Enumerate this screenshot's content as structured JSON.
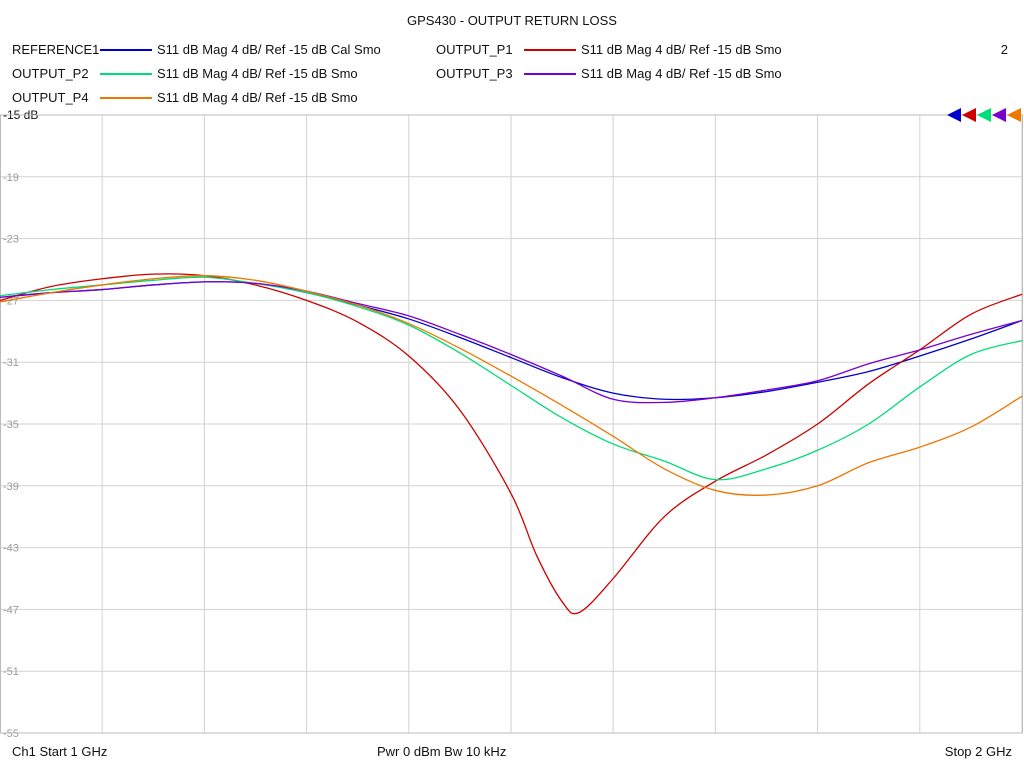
{
  "header": {
    "title": "GPS430 - OUTPUT RETURN LOSS",
    "channel_number": "2"
  },
  "legend": [
    {
      "name": "REFERENCE1",
      "desc": "S11  dB Mag  4 dB/ Ref -15 dB  Cal Smo",
      "color": "#0000cc"
    },
    {
      "name": "OUTPUT_P1",
      "desc": "S11  dB Mag  4 dB/ Ref -15 dB  Smo",
      "color": "#cc0000"
    },
    {
      "name": "OUTPUT_P2",
      "desc": "S11  dB Mag  4 dB/ Ref -15 dB  Smo",
      "color": "#00dd77"
    },
    {
      "name": "OUTPUT_P3",
      "desc": "S11  dB Mag  4 dB/ Ref -15 dB  Smo",
      "color": "#7700cc"
    },
    {
      "name": "OUTPUT_P4",
      "desc": "S11  dB Mag  4 dB/ Ref -15 dB  Smo",
      "color": "#ee7700"
    }
  ],
  "footer": {
    "start": "Ch1  Start  1 GHz",
    "center": "Pwr  0 dBm  Bw  10 kHz",
    "stop": "Stop  2 GHz"
  },
  "chart_data": {
    "type": "line",
    "title": "GPS430 - OUTPUT RETURN LOSS",
    "xlim": [
      1.0,
      2.0
    ],
    "x_unit": "GHz",
    "ylim": [
      -55,
      -15
    ],
    "y_ticks": [
      -15,
      -19,
      -23,
      -27,
      -31,
      -35,
      -39,
      -43,
      -47,
      -51,
      -55
    ],
    "y_tick_labels": [
      "-15 dB",
      "-19",
      "-23",
      "-27",
      "-31",
      "-35",
      "-39",
      "-43",
      "-47",
      "-51",
      "-55"
    ],
    "x_divisions": 10,
    "grid": true,
    "reference_level": -15,
    "series": [
      {
        "name": "REFERENCE1",
        "color": "#0000cc",
        "x": [
          1.0,
          1.05,
          1.1,
          1.15,
          1.2,
          1.25,
          1.3,
          1.35,
          1.4,
          1.45,
          1.5,
          1.55,
          1.6,
          1.65,
          1.7,
          1.75,
          1.8,
          1.85,
          1.9,
          1.95,
          2.0
        ],
        "y": [
          -26.8,
          -26.5,
          -26.3,
          -26.0,
          -25.8,
          -25.9,
          -26.5,
          -27.3,
          -28.2,
          -29.4,
          -30.7,
          -32.0,
          -33.0,
          -33.4,
          -33.3,
          -32.9,
          -32.3,
          -31.6,
          -30.6,
          -29.5,
          -28.3
        ]
      },
      {
        "name": "OUTPUT_P1",
        "color": "#cc0000",
        "x": [
          1.0,
          1.05,
          1.1,
          1.15,
          1.2,
          1.25,
          1.3,
          1.35,
          1.4,
          1.45,
          1.5,
          1.525,
          1.55,
          1.5667,
          1.6,
          1.65,
          1.7,
          1.75,
          1.8,
          1.85,
          1.9,
          1.95,
          2.0
        ],
        "y": [
          -27.0,
          -26.1,
          -25.6,
          -25.3,
          -25.4,
          -26.0,
          -27.0,
          -28.4,
          -30.6,
          -34.1,
          -39.5,
          -43.5,
          -46.5,
          -47.2,
          -45.0,
          -41.0,
          -38.7,
          -37.0,
          -35.0,
          -32.4,
          -30.2,
          -27.9,
          -26.6
        ]
      },
      {
        "name": "OUTPUT_P2",
        "color": "#00dd77",
        "x": [
          1.0,
          1.05,
          1.1,
          1.15,
          1.2,
          1.25,
          1.3,
          1.35,
          1.4,
          1.45,
          1.5,
          1.55,
          1.6,
          1.65,
          1.7,
          1.75,
          1.8,
          1.85,
          1.9,
          1.95,
          2.0
        ],
        "y": [
          -26.7,
          -26.3,
          -26.0,
          -25.7,
          -25.5,
          -25.9,
          -26.5,
          -27.4,
          -28.6,
          -30.4,
          -32.5,
          -34.6,
          -36.3,
          -37.4,
          -38.6,
          -37.9,
          -36.7,
          -35.0,
          -32.6,
          -30.5,
          -29.6
        ]
      },
      {
        "name": "OUTPUT_P3",
        "color": "#7700cc",
        "x": [
          1.0,
          1.05,
          1.1,
          1.15,
          1.2,
          1.25,
          1.3,
          1.35,
          1.4,
          1.45,
          1.5,
          1.55,
          1.6,
          1.65,
          1.7,
          1.75,
          1.8,
          1.85,
          1.9,
          1.95,
          2.0
        ],
        "y": [
          -26.8,
          -26.5,
          -26.3,
          -26.0,
          -25.8,
          -25.9,
          -26.4,
          -27.2,
          -28.0,
          -29.2,
          -30.5,
          -31.9,
          -33.4,
          -33.6,
          -33.3,
          -32.8,
          -32.2,
          -31.1,
          -30.2,
          -29.2,
          -28.3
        ]
      },
      {
        "name": "OUTPUT_P4",
        "color": "#ee7700",
        "x": [
          1.0,
          1.05,
          1.1,
          1.15,
          1.2,
          1.25,
          1.3,
          1.35,
          1.4,
          1.45,
          1.5,
          1.55,
          1.6,
          1.65,
          1.7,
          1.75,
          1.8,
          1.85,
          1.9,
          1.95,
          2.0
        ],
        "y": [
          -27.1,
          -26.5,
          -26.0,
          -25.6,
          -25.4,
          -25.7,
          -26.4,
          -27.3,
          -28.5,
          -30.1,
          -31.9,
          -33.8,
          -35.8,
          -37.9,
          -39.3,
          -39.6,
          -39.0,
          -37.5,
          -36.5,
          -35.2,
          -33.2
        ]
      }
    ]
  }
}
